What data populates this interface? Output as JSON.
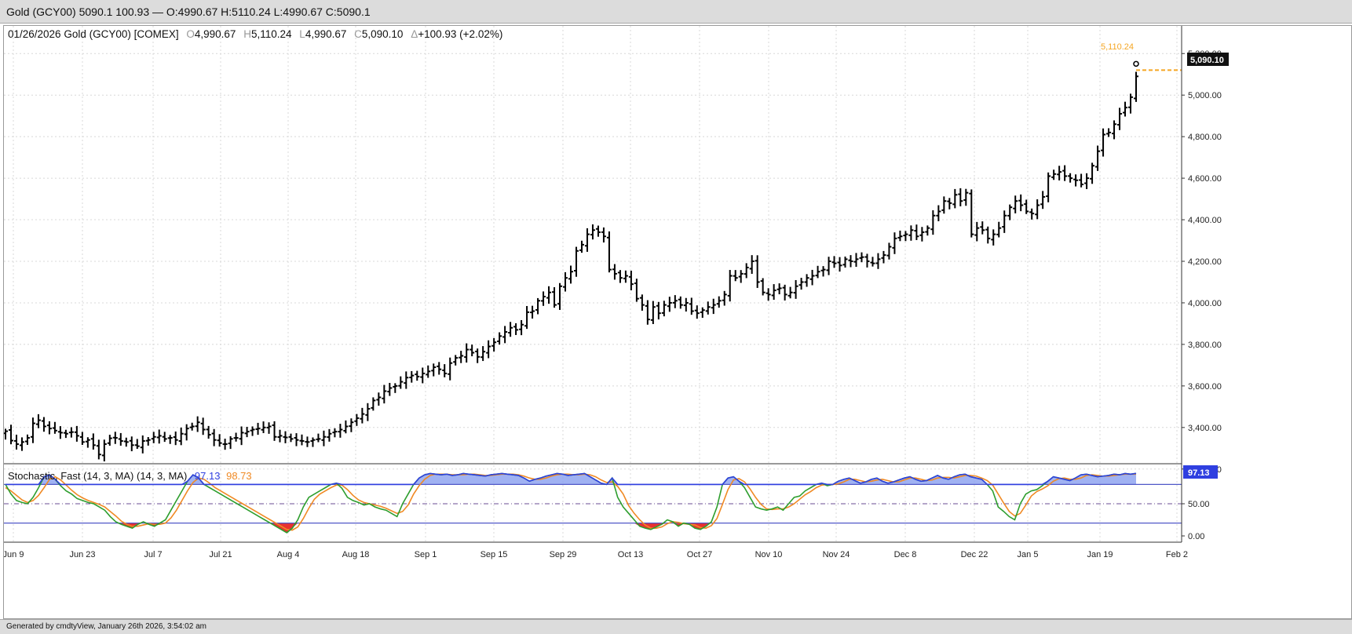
{
  "window": {
    "title": "Gold (GCY00) 5090.1 100.93 — O:4990.67 H:5110.24 L:4990.67 C:5090.1"
  },
  "header": {
    "date_symbol": "01/26/2026 Gold (GCY00) [COMEX]",
    "o_label": "O",
    "o_value": "4,990.67",
    "h_label": "H",
    "h_value": "5,110.24",
    "l_label": "L",
    "l_value": "4,990.67",
    "c_label": "C",
    "c_value": "5,090.10",
    "change_label": "Δ",
    "change_value": "+100.93 (+2.02%)"
  },
  "price_tag": {
    "last": "5,090.10",
    "high": "5,110.24"
  },
  "stoch": {
    "label": "Stochastic, Fast (14, 3, MA)  (14, 3, MA)",
    "k_value": "97.13",
    "d_value": "98.73",
    "k_tag": "97.13"
  },
  "footer": {
    "text": "Generated by cmdtyView, January 26th 2026, 3:54:02 am"
  },
  "colors": {
    "k_line": "#2e9e2e",
    "d_line": "#f08a24",
    "overbought_fill": "#8fa4f0",
    "oversold_fill": "#e83030",
    "band_line": "#5058c8",
    "tag_blue": "#2f3fe0",
    "high_orange": "#f5a623"
  },
  "chart_data": [
    {
      "type": "ohlc",
      "title": "Gold (GCY00) [COMEX]",
      "ylim": [
        3150,
        5250
      ],
      "y_ticks": [
        "3,200.00",
        "3,400.00",
        "3,600.00",
        "3,800.00",
        "4,000.00",
        "4,200.00",
        "4,400.00",
        "4,600.00",
        "4,800.00",
        "5,000.00",
        "5,200.00"
      ],
      "y_tick_values": [
        3200,
        3400,
        3600,
        3800,
        4000,
        4200,
        4400,
        4600,
        4800,
        5000,
        5200
      ],
      "x_ticks": [
        "Jun 9",
        "Jun 23",
        "Jul 7",
        "Jul 21",
        "Aug 4",
        "Aug 18",
        "Sep 1",
        "Sep 15",
        "Sep 29",
        "Oct 13",
        "Oct 27",
        "Nov 10",
        "Nov 24",
        "Dec 8",
        "Dec 22",
        "Jan 5",
        "Jan 19",
        "Feb 2"
      ],
      "grid": true,
      "closes": [
        3382,
        3337,
        3320,
        3330,
        3350,
        3420,
        3435,
        3405,
        3395,
        3385,
        3375,
        3370,
        3378,
        3360,
        3330,
        3340,
        3315,
        3270,
        3320,
        3348,
        3350,
        3335,
        3330,
        3315,
        3310,
        3335,
        3340,
        3355,
        3360,
        3345,
        3350,
        3340,
        3370,
        3395,
        3405,
        3425,
        3390,
        3365,
        3340,
        3325,
        3320,
        3345,
        3350,
        3375,
        3380,
        3390,
        3395,
        3400,
        3405,
        3355,
        3360,
        3352,
        3345,
        3340,
        3335,
        3330,
        3340,
        3345,
        3355,
        3370,
        3380,
        3390,
        3405,
        3425,
        3445,
        3465,
        3490,
        3530,
        3545,
        3575,
        3590,
        3600,
        3620,
        3640,
        3650,
        3645,
        3660,
        3670,
        3690,
        3680,
        3660,
        3710,
        3735,
        3745,
        3775,
        3760,
        3740,
        3765,
        3790,
        3810,
        3840,
        3860,
        3880,
        3870,
        3895,
        3955,
        3960,
        4010,
        4030,
        4050,
        3990,
        4080,
        4120,
        4150,
        4250,
        4280,
        4330,
        4350,
        4340,
        4320,
        4160,
        4140,
        4120,
        4130,
        4090,
        4020,
        3990,
        3920,
        3980,
        3950,
        3990,
        4000,
        4010,
        3990,
        4000,
        3960,
        3950,
        3965,
        3980,
        3990,
        4010,
        4040,
        4130,
        4120,
        4140,
        4170,
        4200,
        4100,
        4050,
        4040,
        4060,
        4070,
        4040,
        4050,
        4080,
        4100,
        4120,
        4130,
        4150,
        4160,
        4200,
        4190,
        4180,
        4210,
        4200,
        4210,
        4220,
        4200,
        4190,
        4210,
        4230,
        4270,
        4310,
        4320,
        4330,
        4350,
        4320,
        4340,
        4360,
        4420,
        4440,
        4490,
        4480,
        4520,
        4490,
        4530,
        4330,
        4360,
        4350,
        4310,
        4330,
        4360,
        4420,
        4460,
        4490,
        4470,
        4440,
        4430,
        4470,
        4510,
        4610,
        4620,
        4630,
        4610,
        4600,
        4590,
        4570,
        4600,
        4660,
        4730,
        4810,
        4820,
        4860,
        4910,
        4940,
        4990,
        5090.1
      ]
    },
    {
      "type": "line",
      "title": "Stochastic, Fast (14, 3, MA)  (14, 3, MA)",
      "ylim": [
        0,
        100
      ],
      "y_ticks": [
        "0.00",
        "50.00"
      ],
      "y_tick_values": [
        0,
        50
      ],
      "bands": [
        20,
        80
      ],
      "midline": 50,
      "series": [
        {
          "values": [
            80,
            65,
            55,
            52,
            50,
            60,
            75,
            92,
            95,
            88,
            78,
            70,
            65,
            58,
            55,
            52,
            50,
            45,
            40,
            30,
            22,
            18,
            15,
            12,
            18,
            22,
            18,
            15,
            20,
            25,
            40,
            55,
            70,
            85,
            95,
            90,
            80,
            75,
            70,
            65,
            60,
            55,
            50,
            45,
            40,
            35,
            30,
            25,
            20,
            15,
            10,
            5,
            12,
            25,
            45,
            60,
            65,
            70,
            75,
            80,
            82,
            74,
            60,
            55,
            52,
            48,
            50,
            45,
            42,
            40,
            35,
            30,
            50,
            65,
            80,
            90,
            95,
            97,
            96,
            95,
            96,
            94,
            95,
            97,
            96,
            95,
            94,
            93,
            95,
            96,
            97,
            96,
            95,
            94,
            90,
            85,
            88,
            90,
            93,
            95,
            97,
            96,
            94,
            95,
            96,
            97,
            92,
            87,
            82,
            80,
            90,
            60,
            45,
            35,
            25,
            15,
            12,
            10,
            14,
            18,
            25,
            22,
            15,
            20,
            18,
            12,
            10,
            15,
            22,
            45,
            80,
            90,
            92,
            85,
            75,
            60,
            45,
            42,
            40,
            42,
            45,
            40,
            50,
            60,
            62,
            70,
            75,
            80,
            82,
            78,
            80,
            85,
            88,
            90,
            86,
            82,
            84,
            88,
            90,
            85,
            82,
            84,
            87,
            90,
            92,
            88,
            85,
            86,
            90,
            94,
            90,
            88,
            92,
            95,
            96,
            92,
            90,
            88,
            80,
            70,
            45,
            38,
            30,
            25,
            50,
            65,
            70,
            72,
            78,
            85,
            92,
            90,
            88,
            86,
            90,
            95,
            96,
            94,
            92,
            93,
            94,
            96,
            95,
            97,
            96,
            97.13
          ]
        },
        {
          "values": [
            75,
            70,
            63,
            56,
            52,
            55,
            63,
            75,
            88,
            92,
            87,
            79,
            71,
            64,
            59,
            55,
            52,
            49,
            45,
            38,
            31,
            23,
            18,
            15,
            15,
            17,
            19,
            18,
            18,
            20,
            28,
            40,
            55,
            70,
            83,
            90,
            88,
            82,
            75,
            70,
            65,
            60,
            55,
            50,
            45,
            40,
            35,
            30,
            25,
            20,
            15,
            10,
            9,
            14,
            27,
            43,
            57,
            65,
            70,
            75,
            79,
            79,
            72,
            63,
            56,
            52,
            50,
            48,
            46,
            43,
            39,
            35,
            38,
            48,
            65,
            78,
            88,
            94,
            96,
            96,
            96,
            95,
            95,
            95,
            96,
            96,
            95,
            94,
            94,
            95,
            96,
            96,
            96,
            95,
            93,
            90,
            88,
            88,
            90,
            93,
            95,
            96,
            96,
            95,
            95,
            96,
            95,
            92,
            87,
            83,
            84,
            77,
            65,
            47,
            35,
            25,
            17,
            12,
            12,
            14,
            19,
            22,
            21,
            19,
            18,
            17,
            13,
            12,
            16,
            27,
            49,
            72,
            87,
            89,
            84,
            73,
            60,
            49,
            42,
            41,
            42,
            42,
            45,
            50,
            57,
            64,
            69,
            75,
            79,
            80,
            80,
            81,
            84,
            88,
            88,
            86,
            84,
            85,
            87,
            88,
            86,
            84,
            84,
            87,
            90,
            90,
            88,
            86,
            87,
            90,
            91,
            91,
            90,
            92,
            94,
            94,
            93,
            90,
            86,
            79,
            65,
            51,
            38,
            31,
            35,
            48,
            62,
            69,
            73,
            78,
            85,
            89,
            90,
            88,
            88,
            90,
            94,
            95,
            94,
            93,
            93,
            94,
            95,
            96,
            96,
            96,
            98.73
          ]
        }
      ]
    }
  ]
}
